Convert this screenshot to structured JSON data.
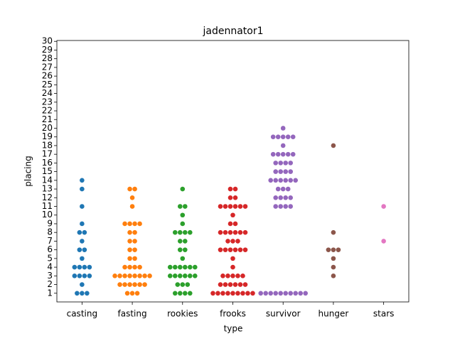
{
  "chart_data": {
    "type": "swarm",
    "title": "jadennator1",
    "x_label": "type",
    "y_label": "placing",
    "categories": [
      "casting",
      "fasting",
      "rookies",
      "frooks",
      "survivor",
      "hunger",
      "stars"
    ],
    "colors": [
      "#1f77b4",
      "#ff7f0e",
      "#2ca02c",
      "#d62728",
      "#9467bd",
      "#8c564b",
      "#e377c2"
    ],
    "values": [
      [
        1,
        1,
        1,
        2,
        3,
        3,
        3,
        3,
        4,
        4,
        4,
        4,
        5,
        6,
        6,
        7,
        8,
        8,
        9,
        11,
        13,
        14
      ],
      [
        1,
        1,
        1,
        2,
        2,
        2,
        2,
        2,
        2,
        3,
        3,
        3,
        3,
        3,
        3,
        3,
        3,
        4,
        4,
        4,
        4,
        5,
        5,
        6,
        6,
        7,
        7,
        8,
        8,
        9,
        9,
        9,
        9,
        11,
        12,
        13,
        13
      ],
      [
        1,
        1,
        1,
        1,
        2,
        2,
        2,
        3,
        3,
        3,
        3,
        3,
        3,
        4,
        4,
        4,
        4,
        4,
        4,
        5,
        6,
        6,
        7,
        7,
        8,
        8,
        8,
        8,
        9,
        10,
        11,
        11,
        13
      ],
      [
        1,
        1,
        1,
        1,
        1,
        1,
        1,
        1,
        1,
        2,
        2,
        2,
        2,
        2,
        2,
        3,
        3,
        3,
        3,
        3,
        4,
        5,
        6,
        6,
        6,
        6,
        6,
        6,
        7,
        7,
        7,
        8,
        8,
        8,
        8,
        8,
        8,
        9,
        9,
        10,
        11,
        11,
        11,
        11,
        11,
        11,
        12,
        12,
        13,
        13
      ],
      [
        1,
        1,
        1,
        1,
        1,
        1,
        1,
        1,
        1,
        1,
        11,
        11,
        11,
        11,
        12,
        12,
        12,
        12,
        13,
        13,
        13,
        14,
        14,
        14,
        14,
        14,
        14,
        15,
        15,
        15,
        15,
        16,
        16,
        16,
        16,
        17,
        17,
        17,
        17,
        17,
        18,
        19,
        19,
        19,
        19,
        19,
        20
      ],
      [
        3,
        4,
        5,
        6,
        6,
        6,
        8,
        18
      ],
      [
        7,
        11
      ]
    ],
    "ylim": [
      0,
      30.1
    ],
    "yticks": [
      1,
      2,
      3,
      4,
      5,
      6,
      7,
      8,
      9,
      10,
      11,
      12,
      13,
      14,
      15,
      16,
      17,
      18,
      19,
      20,
      21,
      22,
      23,
      24,
      25,
      26,
      27,
      28,
      29,
      30
    ]
  }
}
